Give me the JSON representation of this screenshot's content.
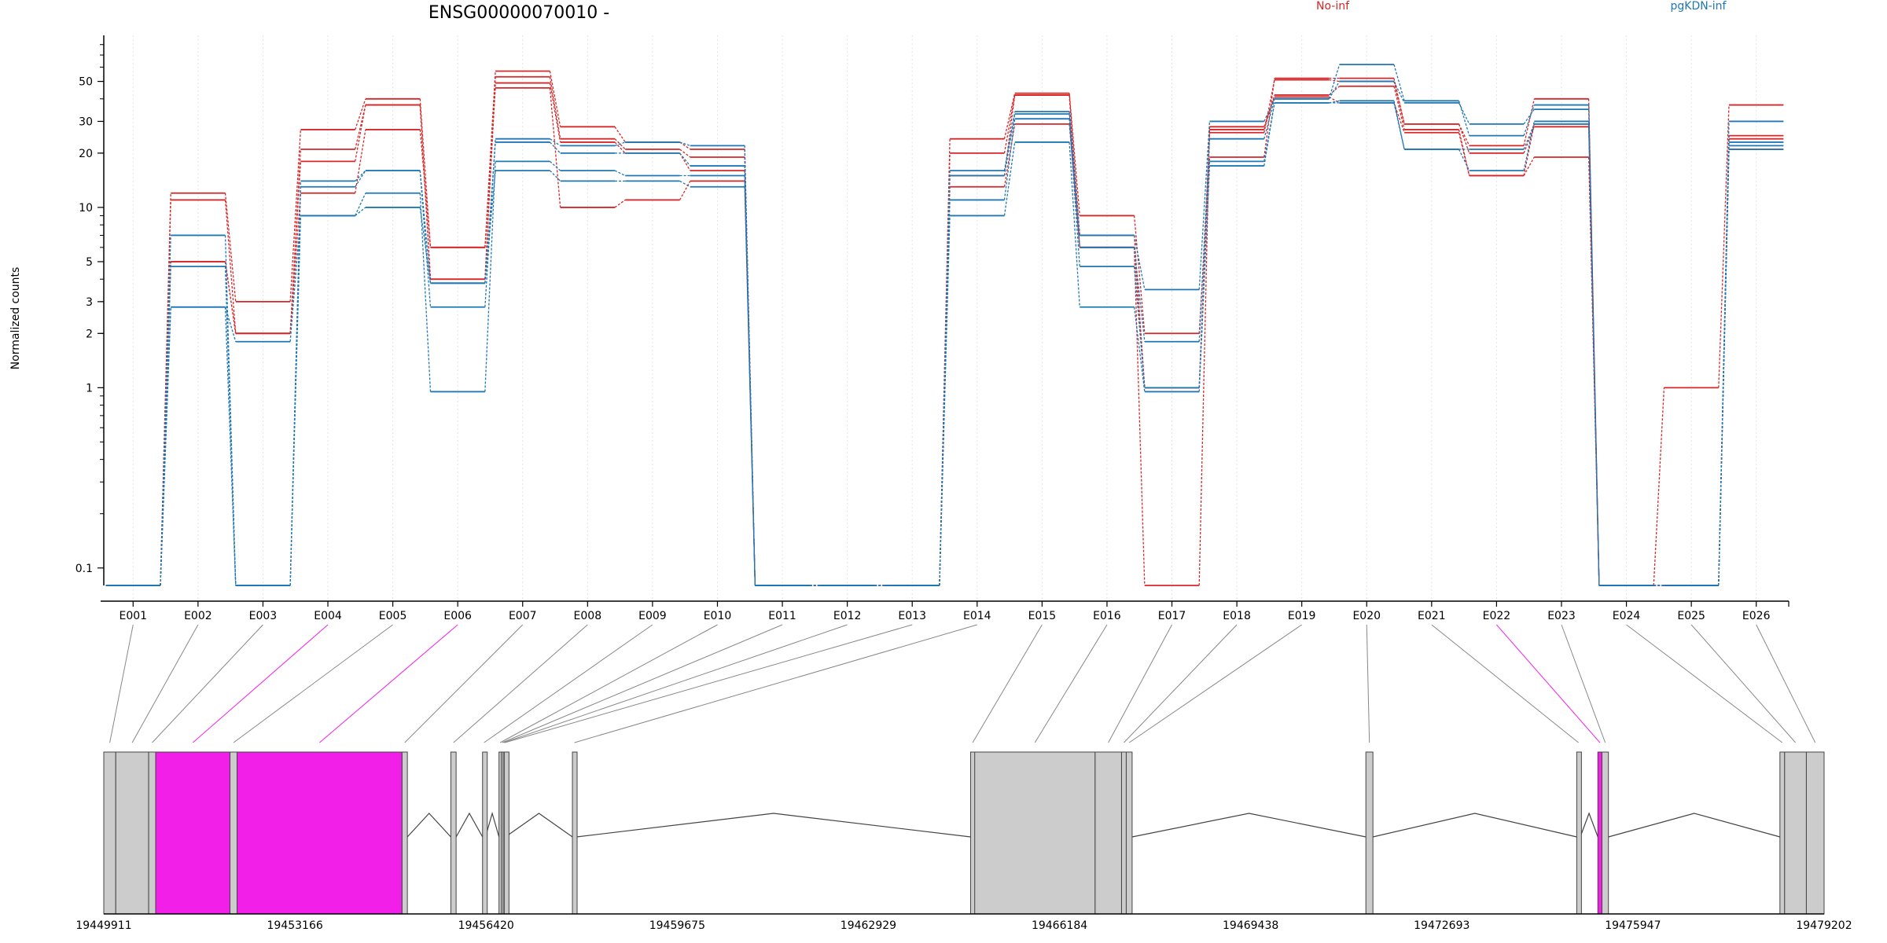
{
  "chart_data": {
    "type": "line",
    "title": "ENSG00000070010 -",
    "ylabel": "Normalized counts",
    "yscale": "log",
    "ylim": [
      0.08,
      90
    ],
    "yticks": [
      0.1,
      1,
      2,
      3,
      5,
      10,
      20,
      30,
      50
    ],
    "ytick_labels": [
      "0.1",
      "1",
      "2",
      "3",
      "5",
      "10",
      "20",
      "30",
      "50"
    ],
    "categories": [
      "E001",
      "E002",
      "E003",
      "E004",
      "E005",
      "E006",
      "E007",
      "E008",
      "E009",
      "E010",
      "E011",
      "E012",
      "E013",
      "E014",
      "E015",
      "E016",
      "E017",
      "E018",
      "E019",
      "E020",
      "E021",
      "E022",
      "E023",
      "E024",
      "E025",
      "E026"
    ],
    "series": [
      {
        "name": "No-inf",
        "color": "#d62728",
        "values": [
          0.08,
          12,
          3,
          27,
          40,
          6,
          57,
          28,
          23,
          21,
          0.08,
          0.08,
          0.08,
          24,
          43,
          9,
          2,
          19,
          52,
          52,
          29,
          22,
          40,
          0.08,
          1,
          37
        ]
      },
      {
        "name": "No-inf",
        "color": "#d62728",
        "values": [
          0.08,
          11,
          2,
          21,
          37,
          4,
          53,
          24,
          21,
          19,
          0.08,
          0.08,
          0.08,
          20,
          42,
          7,
          1,
          26,
          51,
          50,
          29,
          20,
          28,
          0.08,
          0.08,
          25
        ]
      },
      {
        "name": "No-inf",
        "color": "#d62728",
        "values": [
          0.08,
          5,
          2,
          18,
          37,
          4,
          49,
          23,
          20,
          16,
          0.08,
          0.08,
          0.08,
          15,
          42,
          6,
          1,
          27,
          42,
          47,
          27,
          15,
          29,
          0.08,
          0.08,
          24
        ]
      },
      {
        "name": "No-inf",
        "color": "#d62728",
        "values": [
          0.08,
          5,
          2,
          12,
          27,
          6,
          46,
          10,
          11,
          14,
          0.08,
          0.08,
          0.08,
          13,
          29,
          6,
          0.08,
          28,
          41,
          38,
          26,
          15,
          19,
          0.08,
          0.08,
          21
        ]
      },
      {
        "name": "pgKDN-inf",
        "color": "#1f77b4",
        "values": [
          0.08,
          7,
          0.08,
          14,
          16,
          2.8,
          24,
          22,
          23,
          22,
          0.08,
          0.08,
          0.08,
          16,
          34,
          7,
          3.5,
          30,
          40,
          62,
          39,
          25,
          37,
          0.08,
          0.08,
          30
        ]
      },
      {
        "name": "pgKDN-inf",
        "color": "#1f77b4",
        "values": [
          0.08,
          4.7,
          0.08,
          13,
          16,
          3.8,
          23,
          20,
          20,
          17,
          0.08,
          0.08,
          0.08,
          15,
          33,
          6,
          1.8,
          24,
          40,
          50,
          38,
          29,
          35,
          0.08,
          0.08,
          23
        ]
      },
      {
        "name": "pgKDN-inf",
        "color": "#1f77b4",
        "values": [
          0.08,
          2.8,
          1.8,
          9,
          12,
          0.95,
          18,
          16,
          15,
          15,
          0.08,
          0.08,
          0.08,
          11,
          31,
          4.7,
          1,
          18,
          38,
          39,
          21,
          16,
          30,
          0.08,
          0.08,
          22
        ]
      },
      {
        "name": "pgKDN-inf",
        "color": "#1f77b4",
        "values": [
          0.08,
          2.8,
          0.08,
          9,
          10,
          3.8,
          16,
          14,
          14,
          13,
          0.08,
          0.08,
          0.08,
          9,
          23,
          2.8,
          0.95,
          17,
          38,
          38,
          21,
          21,
          29,
          0.08,
          0.08,
          21
        ]
      }
    ],
    "legend": [
      {
        "label": "No-inf",
        "color": "#d62728"
      },
      {
        "label": "pgKDN-inf",
        "color": "#1f77b4"
      }
    ],
    "legend_placement": "top-right",
    "grid": "vertical-dotted"
  },
  "gene_model": {
    "start": 19449911,
    "end": 19479202,
    "coordinate_ticks": [
      19449911,
      19453166,
      19456420,
      19459675,
      19462929,
      19466184,
      19469438,
      19472693,
      19475947,
      19479202
    ],
    "coordinate_labels": [
      "19449911",
      "19453166",
      "19456420",
      "19459675",
      "19462929",
      "19466184",
      "19469438",
      "19472693",
      "19475947",
      "19479202"
    ],
    "highlight_color": "#f21fe9",
    "exon_color": "#cccccc",
    "exons": [
      {
        "id": "E001",
        "start": 19449911,
        "end": 19450115,
        "highlight": false
      },
      {
        "id": "E002",
        "start": 19450115,
        "end": 19450675,
        "highlight": false
      },
      {
        "id": "E003",
        "start": 19450675,
        "end": 19450795,
        "highlight": false
      },
      {
        "id": "E004",
        "start": 19450795,
        "end": 19452060,
        "highlight": true
      },
      {
        "id": "E005",
        "start": 19452060,
        "end": 19452180,
        "highlight": false
      },
      {
        "id": "E006",
        "start": 19452180,
        "end": 19454990,
        "highlight": true
      },
      {
        "id": "E007",
        "start": 19454990,
        "end": 19455080,
        "highlight": false
      },
      {
        "id": "E008",
        "start": 19455820,
        "end": 19455910,
        "highlight": false
      },
      {
        "id": "E009",
        "start": 19456360,
        "end": 19456410,
        "highlight": false
      },
      {
        "id": "E010",
        "start": 19456640,
        "end": 19456680,
        "highlight": false
      },
      {
        "id": "E011",
        "start": 19456680,
        "end": 19456710,
        "highlight": false
      },
      {
        "id": "E012",
        "start": 19456710,
        "end": 19456730,
        "highlight": false
      },
      {
        "id": "E013",
        "start": 19456730,
        "end": 19456750,
        "highlight": false
      },
      {
        "id": "E014",
        "start": 19457890,
        "end": 19457960,
        "highlight": false
      },
      {
        "id": "E015",
        "start": 19464670,
        "end": 19464740,
        "highlight": false
      },
      {
        "id": "E016",
        "start": 19464740,
        "end": 19466790,
        "highlight": false
      },
      {
        "id": "E017",
        "start": 19466790,
        "end": 19467240,
        "highlight": false
      },
      {
        "id": "E018",
        "start": 19467240,
        "end": 19467320,
        "highlight": false
      },
      {
        "id": "E019",
        "start": 19467320,
        "end": 19467420,
        "highlight": false
      },
      {
        "id": "E020",
        "start": 19471400,
        "end": 19471520,
        "highlight": false
      },
      {
        "id": "E021",
        "start": 19474990,
        "end": 19475050,
        "highlight": false
      },
      {
        "id": "E022",
        "start": 19475350,
        "end": 19475420,
        "highlight": true
      },
      {
        "id": "E023",
        "start": 19475420,
        "end": 19475530,
        "highlight": false
      },
      {
        "id": "E024",
        "start": 19478450,
        "end": 19478530,
        "highlight": false
      },
      {
        "id": "E025",
        "start": 19478530,
        "end": 19478900,
        "highlight": false
      },
      {
        "id": "E026",
        "start": 19478900,
        "end": 19479202,
        "highlight": false
      }
    ],
    "introns": [
      [
        19455080,
        19455820
      ],
      [
        19455910,
        19456360
      ],
      [
        19456410,
        19456640
      ],
      [
        19456750,
        19457890
      ],
      [
        19457960,
        19464670
      ],
      [
        19467420,
        19471400
      ],
      [
        19471520,
        19474990
      ],
      [
        19475050,
        19475350
      ],
      [
        19475530,
        19478450
      ]
    ]
  }
}
